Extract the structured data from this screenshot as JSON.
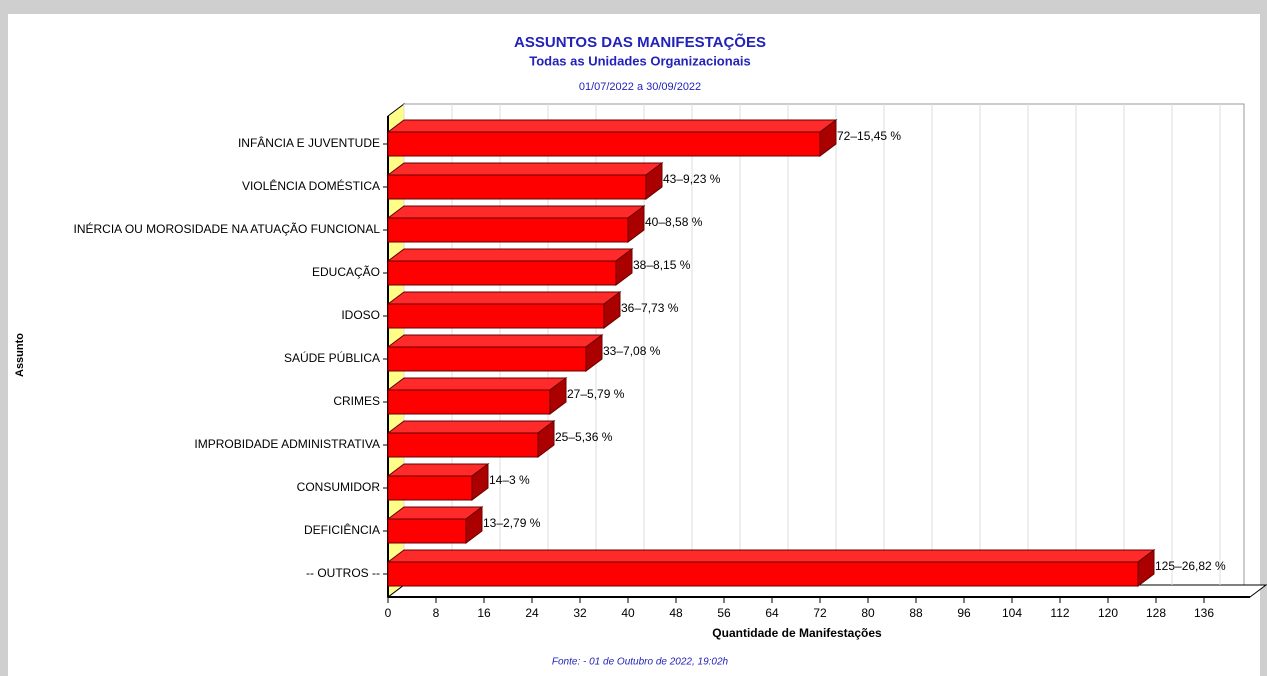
{
  "chart_data": {
    "type": "bar3d",
    "orientation": "horizontal",
    "title": "ASSUNTOS DAS MANIFESTAÇÕES",
    "subtitle": "Todas as Unidades Organizacionais",
    "period": "01/07/2022 a 30/09/2022",
    "x_label": "Quantidade de Manifestações",
    "y_label": "Assunto",
    "source": "Fonte: - 01 de Outubro de 2022, 19:02h",
    "categories": [
      "INFÂNCIA E JUVENTUDE",
      "VIOLÊNCIA DOMÉSTICA",
      "INÉRCIA OU MOROSIDADE NA ATUAÇÃO FUNCIONAL",
      "EDUCAÇÃO",
      "IDOSO",
      "SAÚDE PÚBLICA",
      "CRIMES",
      "IMPROBIDADE ADMINISTRATIVA",
      "CONSUMIDOR",
      "DEFICIÊNCIA",
      "-- OUTROS --"
    ],
    "values": [
      72,
      43,
      40,
      38,
      36,
      33,
      27,
      25,
      14,
      13,
      125
    ],
    "value_labels": [
      "72–15,45 %",
      "43–9,23 %",
      "40–8,58 %",
      "38–8,15 %",
      "36–7,73 %",
      "33–7,08 %",
      "27–5,79 %",
      "25–5,36 %",
      "14–3 %",
      "13–2,79 %",
      "125–26,82 %"
    ],
    "color": "#ff0000",
    "xlim": [
      0,
      140
    ],
    "xticks": [
      0,
      8,
      16,
      24,
      32,
      40,
      48,
      56,
      64,
      72,
      80,
      88,
      96,
      104,
      112,
      120,
      128,
      136
    ],
    "grid": true
  }
}
